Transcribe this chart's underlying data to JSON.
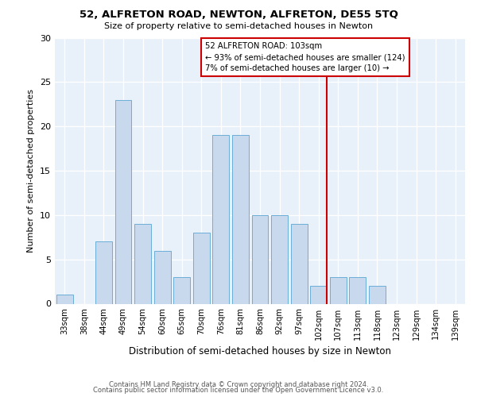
{
  "title": "52, ALFRETON ROAD, NEWTON, ALFRETON, DE55 5TQ",
  "subtitle": "Size of property relative to semi-detached houses in Newton",
  "xlabel": "Distribution of semi-detached houses by size in Newton",
  "ylabel": "Number of semi-detached properties",
  "bar_labels": [
    "33sqm",
    "38sqm",
    "44sqm",
    "49sqm",
    "54sqm",
    "60sqm",
    "65sqm",
    "70sqm",
    "76sqm",
    "81sqm",
    "86sqm",
    "92sqm",
    "97sqm",
    "102sqm",
    "107sqm",
    "113sqm",
    "118sqm",
    "123sqm",
    "129sqm",
    "134sqm",
    "139sqm"
  ],
  "bar_values": [
    1,
    0,
    7,
    23,
    9,
    6,
    3,
    8,
    19,
    19,
    10,
    10,
    9,
    2,
    3,
    3,
    2,
    0,
    0,
    0,
    0
  ],
  "bar_color": "#c8d9ee",
  "bar_edgecolor": "#6aaed6",
  "background_color": "#e8f0fa",
  "grid_color": "#ffffff",
  "vline_color": "#cc0000",
  "annotation_text": "52 ALFRETON ROAD: 103sqm\n← 93% of semi-detached houses are smaller (124)\n7% of semi-detached houses are larger (10) →",
  "annotation_box_edgecolor": "#cc0000",
  "ylim": [
    0,
    30
  ],
  "yticks": [
    0,
    5,
    10,
    15,
    20,
    25,
    30
  ],
  "footer_line1": "Contains HM Land Registry data © Crown copyright and database right 2024.",
  "footer_line2": "Contains public sector information licensed under the Open Government Licence v3.0."
}
